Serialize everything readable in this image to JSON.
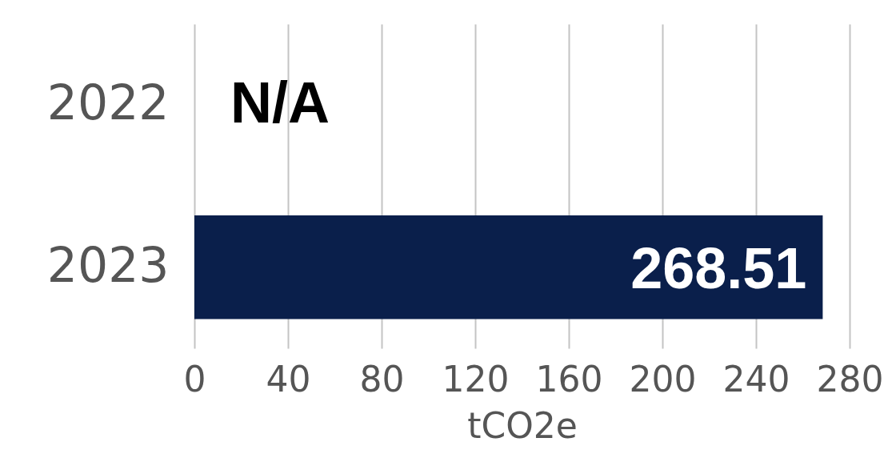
{
  "chart_data": {
    "type": "bar",
    "orientation": "horizontal",
    "categories": [
      "2022",
      "2023"
    ],
    "values": [
      null,
      268.51
    ],
    "value_labels": [
      "N/A",
      "268.51"
    ],
    "color": "#0a1f4b",
    "xlabel": "tCO2e",
    "xlim": [
      0,
      280
    ],
    "xticks": [
      0,
      40,
      80,
      120,
      160,
      200,
      240,
      280
    ],
    "grid": "x"
  }
}
